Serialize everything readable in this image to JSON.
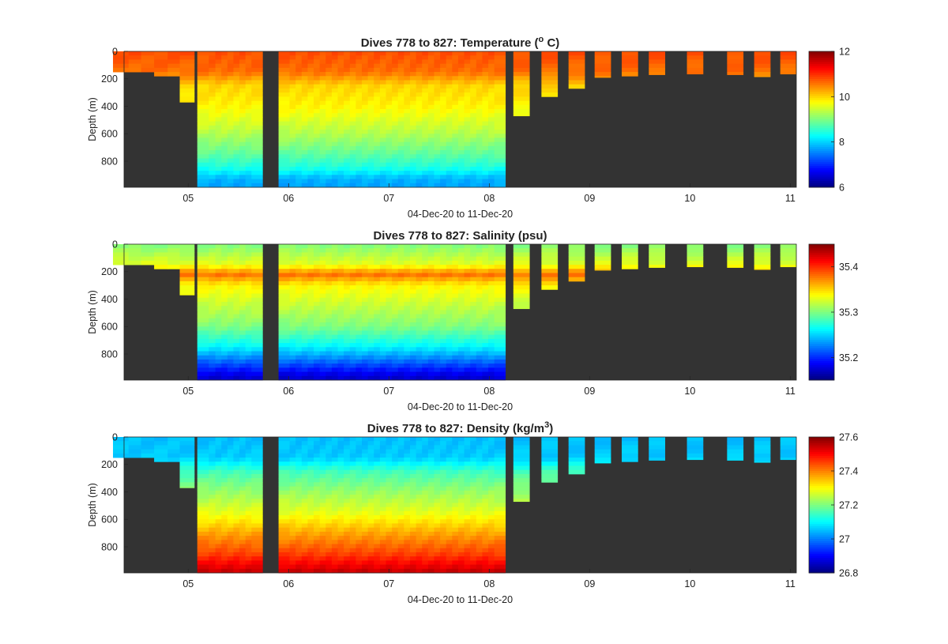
{
  "chart_data": [
    {
      "type": "heatmap",
      "key": "temperature",
      "title": "Dives 778 to 827: Temperature (",
      "title_sup": "o",
      "title_suffix": " C)",
      "xlabel": "04-Dec-20 to 11-Dec-20",
      "ylabel": "Depth (m)",
      "x_ticks": [
        "05",
        "06",
        "07",
        "08",
        "09",
        "10",
        "11"
      ],
      "y_ticks": [
        "0",
        "200",
        "400",
        "600",
        "800"
      ],
      "colorbar_ticks": [
        "12",
        "10",
        "8",
        "6"
      ],
      "colorbar_range": [
        6,
        12
      ],
      "colormap": "jet",
      "background_color": "#333333",
      "clim": [
        6,
        12
      ],
      "profile": [
        [
          0,
          10.8
        ],
        [
          150,
          10.6
        ],
        [
          250,
          10.0
        ],
        [
          400,
          9.8
        ],
        [
          600,
          9.3
        ],
        [
          750,
          8.8
        ],
        [
          850,
          8.4
        ],
        [
          930,
          7.8
        ],
        [
          990,
          7.7
        ]
      ]
    },
    {
      "type": "heatmap",
      "key": "salinity",
      "title": "Dives 778 to 827: Salinity (psu)",
      "xlabel": "04-Dec-20 to 11-Dec-20",
      "ylabel": "Depth (m)",
      "x_ticks": [
        "05",
        "06",
        "07",
        "08",
        "09",
        "10",
        "11"
      ],
      "y_ticks": [
        "0",
        "200",
        "400",
        "600",
        "800"
      ],
      "colorbar_ticks": [
        "35.4",
        "35.3",
        "35.2"
      ],
      "colorbar_range": [
        35.15,
        35.45
      ],
      "colormap": "jet",
      "background_color": "#333333",
      "clim": [
        35.15,
        35.45
      ],
      "profile": [
        [
          0,
          35.3
        ],
        [
          150,
          35.33
        ],
        [
          220,
          35.38
        ],
        [
          300,
          35.34
        ],
        [
          450,
          35.32
        ],
        [
          600,
          35.3
        ],
        [
          750,
          35.26
        ],
        [
          850,
          35.22
        ],
        [
          950,
          35.18
        ],
        [
          990,
          35.17
        ]
      ]
    },
    {
      "type": "heatmap",
      "key": "density",
      "title": "Dives 778 to 827: Density (kg/m",
      "title_sup": "3",
      "title_suffix": ")",
      "xlabel": "04-Dec-20 to 11-Dec-20",
      "ylabel": "Depth (m)",
      "x_ticks": [
        "05",
        "06",
        "07",
        "08",
        "09",
        "10",
        "11"
      ],
      "y_ticks": [
        "0",
        "200",
        "400",
        "600",
        "800"
      ],
      "colorbar_ticks": [
        "27.6",
        "27.4",
        "27.2",
        "27",
        "26.8"
      ],
      "colorbar_range": [
        26.8,
        27.6
      ],
      "colormap": "jet",
      "background_color": "#333333",
      "clim": [
        26.8,
        27.6
      ],
      "profile": [
        [
          0,
          27.05
        ],
        [
          150,
          27.06
        ],
        [
          250,
          27.15
        ],
        [
          400,
          27.22
        ],
        [
          550,
          27.28
        ],
        [
          700,
          27.37
        ],
        [
          850,
          27.45
        ],
        [
          950,
          27.52
        ],
        [
          990,
          27.55
        ]
      ]
    }
  ],
  "profiles_x": [
    4.33,
    4.48,
    4.58,
    4.74,
    4.85,
    4.98,
    5.17,
    5.24,
    5.3,
    5.36,
    5.42,
    5.48,
    5.54,
    5.6,
    5.66,
    5.98,
    6.04,
    6.1,
    6.16,
    6.22,
    6.28,
    6.34,
    6.4,
    6.46,
    6.52,
    6.58,
    6.64,
    6.7,
    6.76,
    6.82,
    6.88,
    6.94,
    7.0,
    7.06,
    7.12,
    7.18,
    7.24,
    7.3,
    7.36,
    7.42,
    7.48,
    7.54,
    7.6,
    7.66,
    7.72,
    7.78,
    7.84,
    7.9,
    7.96,
    8.02,
    8.08,
    8.32,
    8.6,
    8.87,
    9.13,
    9.4,
    9.67,
    10.05,
    10.45,
    10.72,
    10.98
  ],
  "profiles_max_depth": [
    150,
    150,
    150,
    180,
    180,
    370,
    990,
    990,
    990,
    990,
    990,
    990,
    990,
    990,
    990,
    990,
    990,
    990,
    990,
    990,
    990,
    990,
    990,
    990,
    990,
    990,
    990,
    990,
    990,
    990,
    990,
    990,
    990,
    990,
    990,
    990,
    990,
    990,
    990,
    990,
    990,
    990,
    990,
    990,
    990,
    990,
    990,
    990,
    990,
    990,
    990,
    470,
    330,
    270,
    190,
    180,
    170,
    165,
    170,
    185,
    165
  ],
  "x_range": [
    4.36,
    11.06
  ],
  "y_range": [
    0,
    990
  ]
}
